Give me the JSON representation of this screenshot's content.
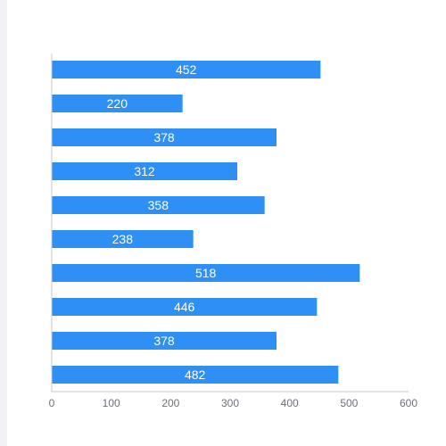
{
  "chart_data": {
    "type": "bar",
    "orientation": "horizontal",
    "categories": [
      "",
      "",
      "",
      "",
      "",
      "",
      "",
      "",
      "",
      ""
    ],
    "values": [
      452,
      220,
      378,
      312,
      358,
      238,
      518,
      446,
      378,
      482
    ],
    "xlim": [
      0,
      600
    ],
    "x_ticks": [
      0,
      100,
      200,
      300,
      400,
      500,
      600
    ],
    "grid": false,
    "legend": "none",
    "data_labels": "inside-center",
    "title": "",
    "xlabel": "",
    "ylabel": ""
  },
  "colors": {
    "bar": "#2e8ff5",
    "bar_label": "#ffffff",
    "axis_line": "#c8c9cc",
    "tick_label": "#6e7079",
    "left_strip": "#f1f2f6"
  }
}
